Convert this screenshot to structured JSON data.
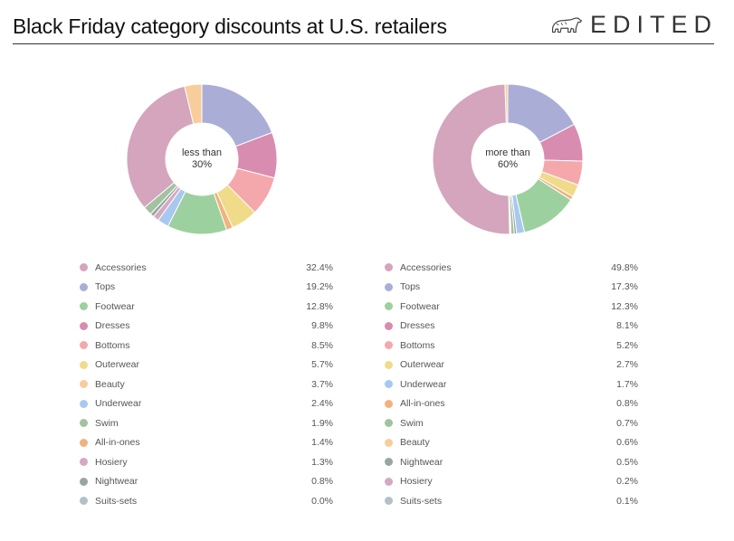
{
  "title": "Black Friday category discounts at U.S. retailers",
  "logo_text": "EDITED",
  "logo_icon": "polar-bear-icon",
  "colors": {
    "Accessories": "#d4a5bd",
    "Tops": "#aaaed6",
    "Footwear": "#9dd09f",
    "Dresses": "#d88cb0",
    "Bottoms": "#f5a8ab",
    "Outerwear": "#f0db8a",
    "Beauty": "#f8cd9c",
    "Underwear": "#a8c8f0",
    "Swim": "#a3c2a0",
    "All-in-ones": "#f2b27c",
    "Hosiery": "#d6a9c3",
    "Nightwear": "#98a6a2",
    "Suits-sets": "#b3c0c6"
  },
  "chart_data": [
    {
      "type": "pie",
      "center_label": [
        "less than",
        "30%"
      ],
      "slices": [
        {
          "name": "Accessories",
          "value": 32.4,
          "label": "32.4%"
        },
        {
          "name": "Tops",
          "value": 19.2,
          "label": "19.2%"
        },
        {
          "name": "Footwear",
          "value": 12.8,
          "label": "12.8%"
        },
        {
          "name": "Dresses",
          "value": 9.8,
          "label": "9.8%"
        },
        {
          "name": "Bottoms",
          "value": 8.5,
          "label": "8.5%"
        },
        {
          "name": "Outerwear",
          "value": 5.7,
          "label": "5.7%"
        },
        {
          "name": "Beauty",
          "value": 3.7,
          "label": "3.7%"
        },
        {
          "name": "Underwear",
          "value": 2.4,
          "label": "2.4%"
        },
        {
          "name": "Swim",
          "value": 1.9,
          "label": "1.9%"
        },
        {
          "name": "All-in-ones",
          "value": 1.4,
          "label": "1.4%"
        },
        {
          "name": "Hosiery",
          "value": 1.3,
          "label": "1.3%"
        },
        {
          "name": "Nightwear",
          "value": 0.8,
          "label": "0.8%"
        },
        {
          "name": "Suits-sets",
          "value": 0.0,
          "label": "0.0%"
        }
      ],
      "draw_order": [
        "Tops",
        "Dresses",
        "Bottoms",
        "Outerwear",
        "All-in-ones",
        "Footwear",
        "Underwear",
        "Hosiery",
        "Nightwear",
        "Swim",
        "Suits-sets",
        "Accessories",
        "Beauty"
      ]
    },
    {
      "type": "pie",
      "center_label": [
        "more than",
        "60%"
      ],
      "slices": [
        {
          "name": "Accessories",
          "value": 49.8,
          "label": "49.8%"
        },
        {
          "name": "Tops",
          "value": 17.3,
          "label": "17.3%"
        },
        {
          "name": "Footwear",
          "value": 12.3,
          "label": "12.3%"
        },
        {
          "name": "Dresses",
          "value": 8.1,
          "label": "8.1%"
        },
        {
          "name": "Bottoms",
          "value": 5.2,
          "label": "5.2%"
        },
        {
          "name": "Outerwear",
          "value": 2.7,
          "label": "2.7%"
        },
        {
          "name": "Underwear",
          "value": 1.7,
          "label": "1.7%"
        },
        {
          "name": "All-in-ones",
          "value": 0.8,
          "label": "0.8%"
        },
        {
          "name": "Swim",
          "value": 0.7,
          "label": "0.7%"
        },
        {
          "name": "Beauty",
          "value": 0.6,
          "label": "0.6%"
        },
        {
          "name": "Nightwear",
          "value": 0.5,
          "label": "0.5%"
        },
        {
          "name": "Hosiery",
          "value": 0.2,
          "label": "0.2%"
        },
        {
          "name": "Suits-sets",
          "value": 0.1,
          "label": "0.1%"
        }
      ],
      "draw_order": [
        "Tops",
        "Dresses",
        "Bottoms",
        "Outerwear",
        "All-in-ones",
        "Footwear",
        "Underwear",
        "Nightwear",
        "Swim",
        "Suits-sets",
        "Hosiery",
        "Accessories",
        "Beauty"
      ]
    }
  ]
}
